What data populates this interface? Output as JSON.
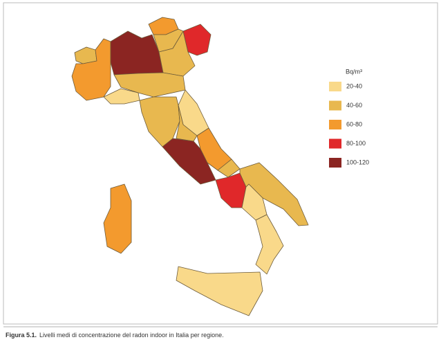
{
  "legend": {
    "title": "Bq/m³",
    "items": [
      {
        "label": "20-40",
        "color": "#f9d98a"
      },
      {
        "label": "40-60",
        "color": "#e8b84f"
      },
      {
        "label": "60-80",
        "color": "#f39a2e"
      },
      {
        "label": "80-100",
        "color": "#e0282a"
      },
      {
        "label": "100-120",
        "color": "#8b2522"
      }
    ]
  },
  "caption": {
    "label": "Figura 5.1.",
    "text": "Livelli medi di concentrazione del radon indoor in Italia per regione."
  }
}
